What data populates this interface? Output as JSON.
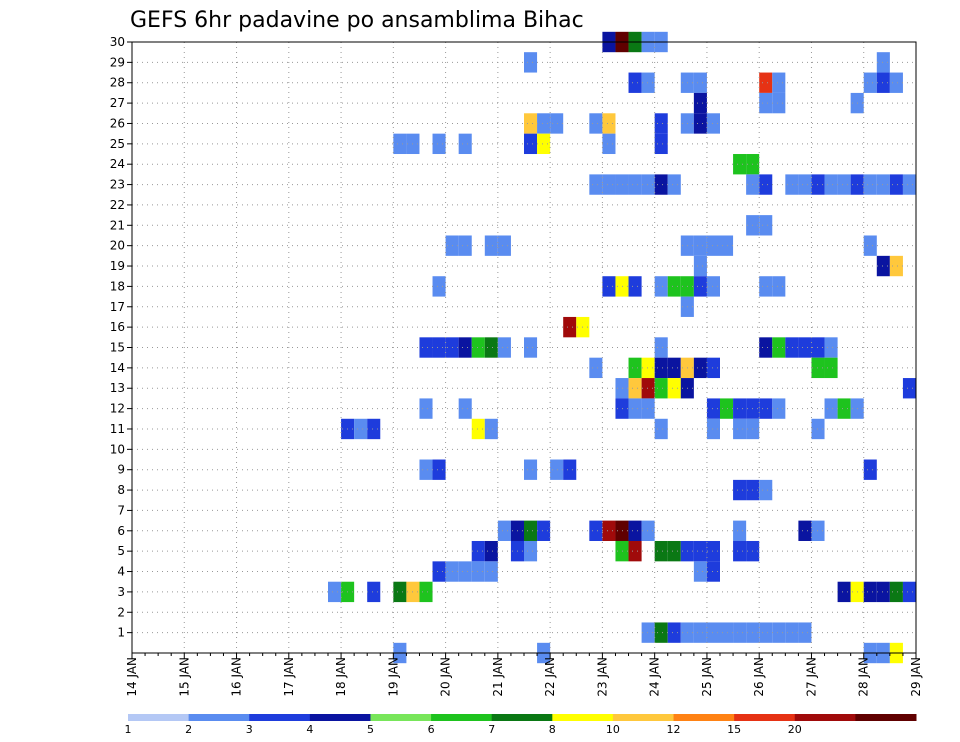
{
  "chart_data": {
    "type": "heatmap",
    "title": "GEFS 6hr padavine po ansamblima Bihac",
    "xlabel": "",
    "ylabel": "",
    "x_tick_labels": [
      "14 JAN",
      "15 JAN",
      "16 JAN",
      "17 JAN",
      "18 JAN",
      "19 JAN",
      "20 JAN",
      "21 JAN",
      "22 JAN",
      "23 JAN",
      "24 JAN",
      "25 JAN",
      "26 JAN",
      "27 JAN",
      "28 JAN",
      "29 JAN"
    ],
    "y_tick_labels": [
      "1",
      "2",
      "3",
      "4",
      "5",
      "6",
      "7",
      "8",
      "9",
      "10",
      "11",
      "12",
      "13",
      "14",
      "15",
      "16",
      "17",
      "18",
      "19",
      "20",
      "21",
      "22",
      "23",
      "24",
      "25",
      "26",
      "27",
      "28",
      "29",
      "30"
    ],
    "x_unit": "6-hour step from 14 JAN 00Z",
    "y_unit": "ensemble member",
    "x_range": [
      0,
      60
    ],
    "y_range": [
      0,
      30
    ],
    "grid": true,
    "legend": {
      "position": "bottom",
      "labels": [
        "1",
        "2",
        "3",
        "4",
        "5",
        "6",
        "7",
        "8",
        "10",
        "12",
        "15",
        "20"
      ],
      "colors": [
        "#b4c8f5",
        "#5a8cf0",
        "#1e3cdc",
        "#0a14a0",
        "#78e65a",
        "#1ec31e",
        "#0a7814",
        "#ffff00",
        "#ffc83c",
        "#ff8214",
        "#e63214",
        "#a00a0a",
        "#600000"
      ]
    },
    "cells": [
      [
        36,
        30,
        3
      ],
      [
        37,
        30,
        12
      ],
      [
        38,
        30,
        6
      ],
      [
        39,
        30,
        1
      ],
      [
        40,
        30,
        1
      ],
      [
        30,
        29,
        1
      ],
      [
        57,
        29,
        1
      ],
      [
        38,
        28,
        2
      ],
      [
        39,
        28,
        1
      ],
      [
        42,
        28,
        1
      ],
      [
        43,
        28,
        1
      ],
      [
        48,
        28,
        10
      ],
      [
        49,
        28,
        1
      ],
      [
        56,
        28,
        1
      ],
      [
        57,
        28,
        2
      ],
      [
        58,
        28,
        1
      ],
      [
        43,
        27,
        3
      ],
      [
        48,
        27,
        1
      ],
      [
        49,
        27,
        1
      ],
      [
        55,
        27,
        1
      ],
      [
        30,
        26,
        8
      ],
      [
        31,
        26,
        1
      ],
      [
        32,
        26,
        1
      ],
      [
        35,
        26,
        1
      ],
      [
        36,
        26,
        8
      ],
      [
        40,
        26,
        2
      ],
      [
        42,
        26,
        1
      ],
      [
        43,
        26,
        3
      ],
      [
        44,
        26,
        1
      ],
      [
        20,
        25,
        1
      ],
      [
        21,
        25,
        1
      ],
      [
        23,
        25,
        1
      ],
      [
        25,
        25,
        1
      ],
      [
        30,
        25,
        2
      ],
      [
        31,
        25,
        7
      ],
      [
        36,
        25,
        1
      ],
      [
        40,
        25,
        2
      ],
      [
        46,
        24,
        5
      ],
      [
        47,
        24,
        5
      ],
      [
        35,
        23,
        1
      ],
      [
        36,
        23,
        1
      ],
      [
        37,
        23,
        1
      ],
      [
        38,
        23,
        1
      ],
      [
        39,
        23,
        1
      ],
      [
        40,
        23,
        3
      ],
      [
        41,
        23,
        1
      ],
      [
        47,
        23,
        1
      ],
      [
        48,
        23,
        2
      ],
      [
        50,
        23,
        1
      ],
      [
        51,
        23,
        1
      ],
      [
        52,
        23,
        2
      ],
      [
        53,
        23,
        1
      ],
      [
        54,
        23,
        1
      ],
      [
        55,
        23,
        2
      ],
      [
        56,
        23,
        1
      ],
      [
        57,
        23,
        1
      ],
      [
        58,
        23,
        2
      ],
      [
        59,
        23,
        1
      ],
      [
        47,
        21,
        1
      ],
      [
        48,
        21,
        1
      ],
      [
        24,
        20,
        1
      ],
      [
        25,
        20,
        1
      ],
      [
        27,
        20,
        1
      ],
      [
        28,
        20,
        1
      ],
      [
        42,
        20,
        1
      ],
      [
        43,
        20,
        1
      ],
      [
        44,
        20,
        1
      ],
      [
        45,
        20,
        1
      ],
      [
        56,
        20,
        1
      ],
      [
        43,
        19,
        1
      ],
      [
        57,
        19,
        3
      ],
      [
        58,
        19,
        8
      ],
      [
        23,
        18,
        1
      ],
      [
        36,
        18,
        2
      ],
      [
        37,
        18,
        7
      ],
      [
        38,
        18,
        2
      ],
      [
        40,
        18,
        1
      ],
      [
        41,
        18,
        5
      ],
      [
        42,
        18,
        5
      ],
      [
        43,
        18,
        2
      ],
      [
        44,
        18,
        1
      ],
      [
        48,
        18,
        1
      ],
      [
        49,
        18,
        1
      ],
      [
        42,
        17,
        1
      ],
      [
        33,
        16,
        11
      ],
      [
        34,
        16,
        7
      ],
      [
        22,
        15,
        2
      ],
      [
        23,
        15,
        2
      ],
      [
        24,
        15,
        2
      ],
      [
        25,
        15,
        3
      ],
      [
        26,
        15,
        5
      ],
      [
        27,
        15,
        6
      ],
      [
        28,
        15,
        1
      ],
      [
        30,
        15,
        1
      ],
      [
        40,
        15,
        1
      ],
      [
        48,
        15,
        3
      ],
      [
        49,
        15,
        5
      ],
      [
        50,
        15,
        2
      ],
      [
        51,
        15,
        2
      ],
      [
        52,
        15,
        2
      ],
      [
        53,
        15,
        1
      ],
      [
        35,
        14,
        1
      ],
      [
        38,
        14,
        5
      ],
      [
        39,
        14,
        7
      ],
      [
        40,
        14,
        3
      ],
      [
        41,
        14,
        3
      ],
      [
        42,
        14,
        8
      ],
      [
        43,
        14,
        3
      ],
      [
        44,
        14,
        2
      ],
      [
        52,
        14,
        5
      ],
      [
        53,
        14,
        5
      ],
      [
        37,
        13,
        1
      ],
      [
        38,
        13,
        8
      ],
      [
        39,
        13,
        11
      ],
      [
        40,
        13,
        5
      ],
      [
        41,
        13,
        7
      ],
      [
        42,
        13,
        3
      ],
      [
        59,
        13,
        2
      ],
      [
        22,
        12,
        1
      ],
      [
        25,
        12,
        1
      ],
      [
        37,
        12,
        2
      ],
      [
        38,
        12,
        1
      ],
      [
        39,
        12,
        1
      ],
      [
        44,
        12,
        2
      ],
      [
        45,
        12,
        5
      ],
      [
        46,
        12,
        2
      ],
      [
        47,
        12,
        2
      ],
      [
        48,
        12,
        2
      ],
      [
        49,
        12,
        1
      ],
      [
        53,
        12,
        1
      ],
      [
        54,
        12,
        5
      ],
      [
        55,
        12,
        1
      ],
      [
        16,
        11,
        2
      ],
      [
        17,
        11,
        1
      ],
      [
        18,
        11,
        2
      ],
      [
        26,
        11,
        7
      ],
      [
        27,
        11,
        1
      ],
      [
        40,
        11,
        1
      ],
      [
        44,
        11,
        1
      ],
      [
        46,
        11,
        1
      ],
      [
        47,
        11,
        1
      ],
      [
        52,
        11,
        1
      ],
      [
        22,
        9,
        1
      ],
      [
        23,
        9,
        2
      ],
      [
        30,
        9,
        1
      ],
      [
        32,
        9,
        1
      ],
      [
        33,
        9,
        2
      ],
      [
        56,
        9,
        2
      ],
      [
        46,
        8,
        2
      ],
      [
        47,
        8,
        2
      ],
      [
        48,
        8,
        1
      ],
      [
        28,
        6,
        1
      ],
      [
        29,
        6,
        3
      ],
      [
        30,
        6,
        6
      ],
      [
        31,
        6,
        2
      ],
      [
        35,
        6,
        2
      ],
      [
        36,
        6,
        11
      ],
      [
        37,
        6,
        12
      ],
      [
        38,
        6,
        3
      ],
      [
        39,
        6,
        1
      ],
      [
        46,
        6,
        1
      ],
      [
        51,
        6,
        3
      ],
      [
        52,
        6,
        1
      ],
      [
        26,
        5,
        2
      ],
      [
        27,
        5,
        3
      ],
      [
        29,
        5,
        2
      ],
      [
        30,
        5,
        1
      ],
      [
        37,
        5,
        5
      ],
      [
        38,
        5,
        11
      ],
      [
        40,
        5,
        6
      ],
      [
        41,
        5,
        6
      ],
      [
        42,
        5,
        2
      ],
      [
        43,
        5,
        2
      ],
      [
        44,
        5,
        2
      ],
      [
        46,
        5,
        2
      ],
      [
        47,
        5,
        2
      ],
      [
        23,
        4,
        2
      ],
      [
        24,
        4,
        1
      ],
      [
        25,
        4,
        1
      ],
      [
        26,
        4,
        1
      ],
      [
        27,
        4,
        1
      ],
      [
        43,
        4,
        1
      ],
      [
        44,
        4,
        2
      ],
      [
        15,
        3,
        1
      ],
      [
        16,
        3,
        5
      ],
      [
        18,
        3,
        2
      ],
      [
        20,
        3,
        6
      ],
      [
        21,
        3,
        8
      ],
      [
        22,
        3,
        5
      ],
      [
        54,
        3,
        3
      ],
      [
        55,
        3,
        7
      ],
      [
        56,
        3,
        3
      ],
      [
        57,
        3,
        3
      ],
      [
        58,
        3,
        6
      ],
      [
        59,
        3,
        2
      ],
      [
        39,
        1,
        1
      ],
      [
        40,
        1,
        6
      ],
      [
        41,
        1,
        2
      ],
      [
        42,
        1,
        1
      ],
      [
        43,
        1,
        1
      ],
      [
        44,
        1,
        1
      ],
      [
        45,
        1,
        1
      ],
      [
        46,
        1,
        1
      ],
      [
        47,
        1,
        1
      ],
      [
        48,
        1,
        1
      ],
      [
        49,
        1,
        1
      ],
      [
        50,
        1,
        1
      ],
      [
        51,
        1,
        1
      ],
      [
        20,
        0,
        1
      ],
      [
        31,
        0,
        1
      ],
      [
        56,
        0,
        1
      ],
      [
        57,
        0,
        1
      ],
      [
        58,
        0,
        7
      ]
    ]
  }
}
